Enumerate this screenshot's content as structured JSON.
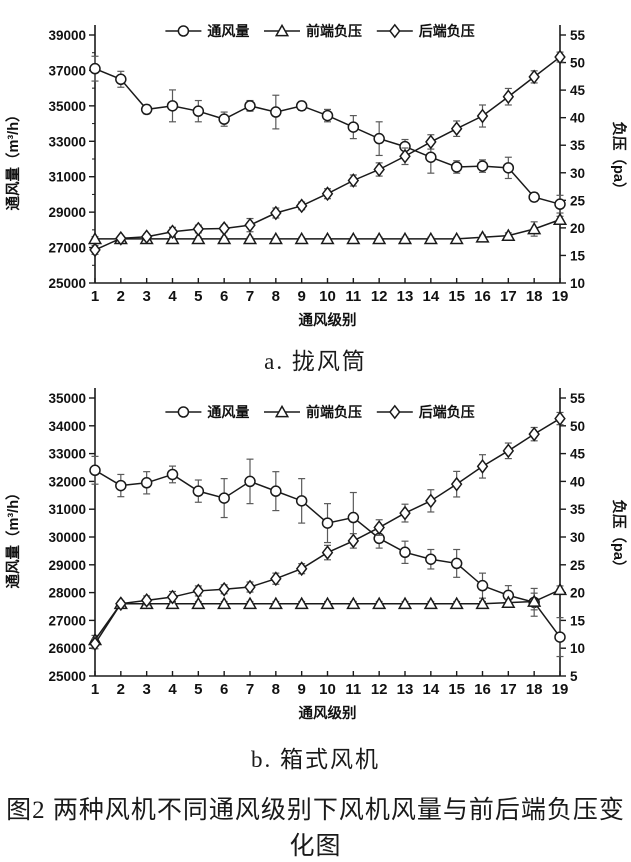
{
  "page": {
    "caption_a": "a. 拢风筒",
    "caption_b": "b. 箱式风机",
    "figure_caption": "图2 两种风机不同通风级别下风机风量与前后端负压变化图"
  },
  "legend": {
    "items": [
      {
        "label": "通风量",
        "marker": "circle-marker-icon"
      },
      {
        "label": "前端负压",
        "marker": "triangle-marker-icon"
      },
      {
        "label": "后端负压",
        "marker": "diamond-marker-icon"
      }
    ]
  },
  "colors": {
    "line": "#1a1a1a",
    "marker_fill": "#ffffff",
    "error_bar": "#5a5a5a",
    "background": "#ffffff"
  },
  "chart_data": [
    {
      "id": "a",
      "type": "line",
      "title": "a. 拢风筒",
      "xlabel": "通风级别",
      "ylabel_left": "通风量（m³/h）",
      "ylabel_right": "负压（pa）",
      "categories": [
        1,
        2,
        3,
        4,
        5,
        6,
        7,
        8,
        9,
        10,
        11,
        12,
        13,
        14,
        15,
        16,
        17,
        18,
        19
      ],
      "ylim_left": [
        25000,
        39000
      ],
      "yticks_left": [
        25000,
        27000,
        29000,
        31000,
        33000,
        35000,
        37000,
        39000
      ],
      "yticks_left_minor": [
        26000,
        28000,
        30000,
        32000,
        34000,
        36000,
        38000
      ],
      "ylim_right": [
        10,
        55
      ],
      "yticks_right": [
        10,
        15,
        20,
        25,
        30,
        35,
        40,
        45,
        50,
        55
      ],
      "grid": false,
      "legend_position": "top-center-inside",
      "series": [
        {
          "name": "通风量",
          "semantic": "ventilation-volume",
          "axis": "left",
          "marker": "circle",
          "values": [
            37100,
            36500,
            34800,
            35000,
            34700,
            34250,
            35000,
            34650,
            35000,
            34450,
            33800,
            33150,
            32700,
            32100,
            31550,
            31600,
            31500,
            29850,
            29450
          ],
          "errors": [
            700,
            450,
            250,
            900,
            600,
            400,
            300,
            950,
            250,
            350,
            650,
            950,
            400,
            900,
            350,
            350,
            600,
            250,
            500
          ]
        },
        {
          "name": "前端负压",
          "semantic": "front-end-negative-pressure",
          "axis": "right",
          "marker": "triangle",
          "values": [
            18,
            18,
            18,
            18,
            18,
            18,
            18,
            18,
            18,
            18,
            18,
            18,
            18,
            18,
            18,
            18.3,
            18.6,
            19.8,
            21.5
          ],
          "errors": [
            0.4,
            0.3,
            0.3,
            0.3,
            0.3,
            0.3,
            0.3,
            0.3,
            0.3,
            0.3,
            0.3,
            0.3,
            0.3,
            0.3,
            0.3,
            0.4,
            0.5,
            1.3,
            0.6
          ]
        },
        {
          "name": "后端负压",
          "semantic": "rear-end-negative-pressure",
          "axis": "right",
          "marker": "diamond",
          "values": [
            16,
            18.1,
            18.4,
            19.3,
            19.8,
            19.9,
            20.5,
            22.7,
            24,
            26.2,
            28.6,
            30.6,
            33,
            35.6,
            38,
            40.3,
            43.8,
            47.4,
            51
          ],
          "errors": [
            0.8,
            0.4,
            0.5,
            0.8,
            0.7,
            0.6,
            1.2,
            0.9,
            0.7,
            0.9,
            1.0,
            1.2,
            1.5,
            1.3,
            1.4,
            2.0,
            1.5,
            1.1,
            0.9
          ]
        }
      ]
    },
    {
      "id": "b",
      "type": "line",
      "title": "b. 箱式风机",
      "xlabel": "通风级别",
      "ylabel_left": "通风量（m³/h）",
      "ylabel_right": "负压（pa）",
      "categories": [
        1,
        2,
        3,
        4,
        5,
        6,
        7,
        8,
        9,
        10,
        11,
        12,
        13,
        14,
        15,
        16,
        17,
        18,
        19
      ],
      "ylim_left": [
        25000,
        35000
      ],
      "yticks_left": [
        25000,
        26000,
        27000,
        28000,
        29000,
        30000,
        31000,
        32000,
        33000,
        34000,
        35000
      ],
      "yticks_left_minor": [],
      "ylim_right": [
        5,
        55
      ],
      "yticks_right": [
        5,
        10,
        15,
        20,
        25,
        30,
        35,
        40,
        45,
        50,
        55
      ],
      "grid": false,
      "legend_position": "top-center-inside",
      "series": [
        {
          "name": "通风量",
          "semantic": "ventilation-volume",
          "axis": "left",
          "marker": "circle",
          "values": [
            32400,
            31850,
            31950,
            32250,
            31650,
            31400,
            32000,
            31650,
            31300,
            30500,
            30700,
            29950,
            29450,
            29200,
            29050,
            28250,
            27900,
            27650,
            26400
          ],
          "errors": [
            500,
            400,
            400,
            300,
            400,
            700,
            800,
            700,
            800,
            700,
            900,
            350,
            400,
            350,
            500,
            450,
            350,
            500,
            700
          ]
        },
        {
          "name": "前端负压",
          "semantic": "front-end-negative-pressure",
          "axis": "right",
          "marker": "triangle",
          "values": [
            11.5,
            18,
            18,
            18,
            18,
            18,
            18,
            18,
            18,
            18,
            18,
            18,
            18,
            18,
            18,
            18,
            18.2,
            18.4,
            20.5
          ],
          "errors": [
            0.8,
            0.4,
            0.4,
            0.4,
            0.4,
            0.4,
            0.4,
            0.4,
            0.4,
            0.4,
            0.4,
            0.4,
            0.4,
            0.4,
            0.4,
            0.4,
            0.5,
            1.5,
            0.7
          ]
        },
        {
          "name": "后端负压",
          "semantic": "rear-end-negative-pressure",
          "axis": "right",
          "marker": "diamond",
          "values": [
            10.8,
            18,
            18.6,
            19.2,
            20.3,
            20.6,
            21,
            22.5,
            24.3,
            27.2,
            29.3,
            31.7,
            34.3,
            36.5,
            39.5,
            42.7,
            45.5,
            48.5,
            51.3
          ],
          "errors": [
            0.9,
            0.5,
            0.8,
            1.0,
            0.9,
            0.8,
            0.9,
            1.0,
            0.9,
            1.3,
            1.3,
            1.4,
            1.6,
            2.0,
            2.3,
            2.1,
            1.4,
            1.2,
            1.1
          ]
        }
      ]
    }
  ]
}
